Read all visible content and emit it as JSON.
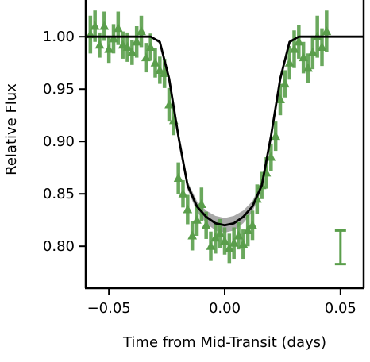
{
  "chart_data": {
    "type": "scatter",
    "title": "",
    "xlabel": "Time from Mid-Transit (days)",
    "ylabel": "Relative Flux",
    "xlim": [
      -0.06,
      0.06
    ],
    "ylim": [
      0.76,
      1.035
    ],
    "x_ticks": [
      -0.05,
      0.0,
      0.05
    ],
    "x_tick_labels": [
      "−0.05",
      "0.00",
      "0.05"
    ],
    "y_ticks": [
      0.8,
      0.85,
      0.9,
      0.95,
      1.0
    ],
    "y_tick_labels": [
      "0.80",
      "0.85",
      "0.90",
      "0.95",
      "1.00"
    ],
    "grid": false,
    "colors": {
      "data": "#5a9e4b",
      "model": "#000000",
      "band": "#8c8c8c"
    },
    "observations": {
      "marker": "triangle-up",
      "x": [
        -0.058,
        -0.056,
        -0.054,
        -0.052,
        -0.05,
        -0.048,
        -0.046,
        -0.044,
        -0.042,
        -0.04,
        -0.038,
        -0.036,
        -0.034,
        -0.032,
        -0.03,
        -0.028,
        -0.026,
        -0.024,
        -0.022,
        -0.02,
        -0.018,
        -0.016,
        -0.014,
        -0.012,
        -0.01,
        -0.008,
        -0.006,
        -0.004,
        -0.002,
        0.0,
        0.002,
        0.004,
        0.006,
        0.008,
        0.01,
        0.012,
        0.014,
        0.016,
        0.018,
        0.02,
        0.022,
        0.024,
        0.026,
        0.028,
        0.03,
        0.032,
        0.034,
        0.036,
        0.038,
        0.04,
        0.042,
        0.044
      ],
      "y": [
        1.002,
        1.01,
        0.992,
        1.01,
        0.988,
        0.998,
        1.008,
        0.992,
        0.99,
        0.985,
        0.995,
        1.005,
        0.98,
        0.99,
        0.975,
        0.968,
        0.965,
        0.935,
        0.92,
        0.865,
        0.85,
        0.835,
        0.81,
        0.825,
        0.84,
        0.82,
        0.8,
        0.808,
        0.812,
        0.805,
        0.798,
        0.803,
        0.81,
        0.802,
        0.815,
        0.82,
        0.845,
        0.858,
        0.87,
        0.885,
        0.905,
        0.94,
        0.955,
        0.975,
        0.988,
        0.995,
        0.98,
        0.97,
        0.985,
        1.0,
        0.99,
        1.005
      ],
      "yerr": [
        0.018,
        0.015,
        0.012,
        0.014,
        0.013,
        0.014,
        0.016,
        0.013,
        0.014,
        0.012,
        0.015,
        0.015,
        0.014,
        0.013,
        0.014,
        0.013,
        0.014,
        0.016,
        0.014,
        0.015,
        0.013,
        0.014,
        0.014,
        0.015,
        0.016,
        0.013,
        0.014,
        0.015,
        0.014,
        0.013,
        0.014,
        0.015,
        0.013,
        0.014,
        0.015,
        0.014,
        0.014,
        0.013,
        0.015,
        0.013,
        0.014,
        0.015,
        0.013,
        0.016,
        0.018,
        0.016,
        0.015,
        0.014,
        0.016,
        0.02,
        0.018,
        0.02
      ]
    },
    "model": {
      "x": [
        -0.06,
        -0.032,
        -0.028,
        -0.024,
        -0.02,
        -0.016,
        -0.012,
        -0.008,
        -0.004,
        0.0,
        0.004,
        0.008,
        0.012,
        0.016,
        0.02,
        0.024,
        0.028,
        0.032,
        0.06
      ],
      "y": [
        1.0,
        1.0,
        0.995,
        0.96,
        0.905,
        0.858,
        0.838,
        0.828,
        0.822,
        0.82,
        0.822,
        0.828,
        0.838,
        0.858,
        0.905,
        0.96,
        0.995,
        1.0,
        1.0
      ],
      "band": [
        0.0,
        0.0,
        0.002,
        0.004,
        0.004,
        0.004,
        0.005,
        0.006,
        0.007,
        0.007,
        0.007,
        0.006,
        0.005,
        0.004,
        0.004,
        0.004,
        0.002,
        0.0,
        0.0
      ]
    },
    "typical_error_bar": {
      "x": 0.05,
      "y": 0.799,
      "yerr": 0.016,
      "placement": "bottom-right"
    }
  }
}
